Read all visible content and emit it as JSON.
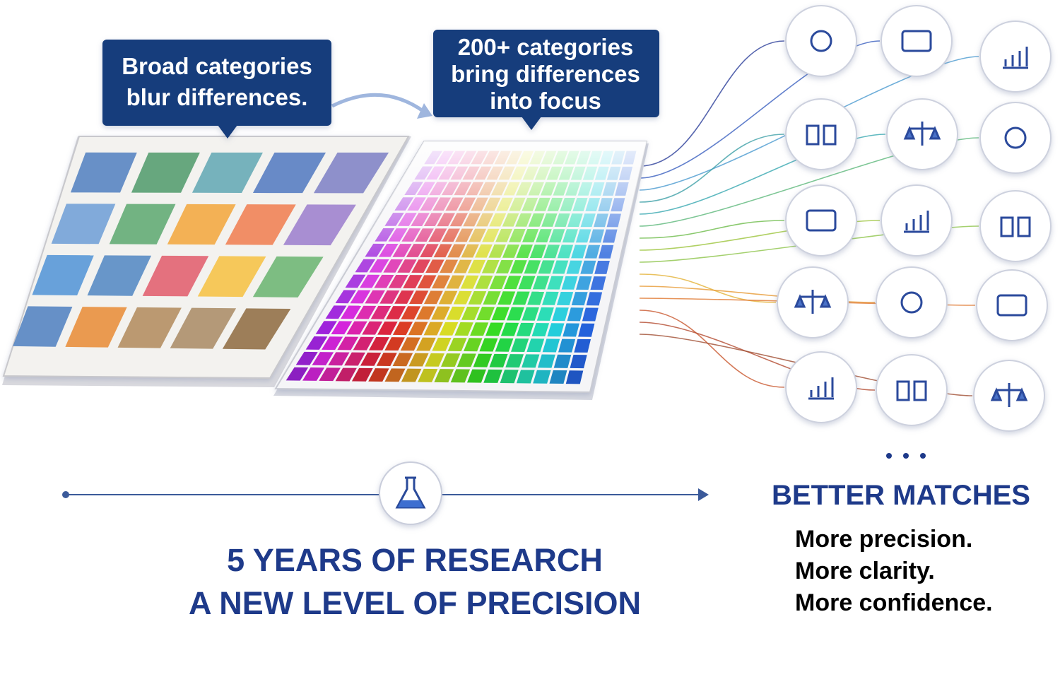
{
  "callouts": [
    {
      "lines": [
        "Broad categories",
        "blur differences."
      ]
    },
    {
      "lines": [
        "200+ categories",
        "bring differences",
        "into focus"
      ]
    }
  ],
  "headline": {
    "lines": [
      "5 YEARS OF RESEARCH",
      "A NEW LEVEL OF PRECISION"
    ]
  },
  "results": {
    "title": "BETTER MATCHES",
    "lines": [
      "More precision.",
      "More clarity.",
      "More confidence."
    ]
  }
}
